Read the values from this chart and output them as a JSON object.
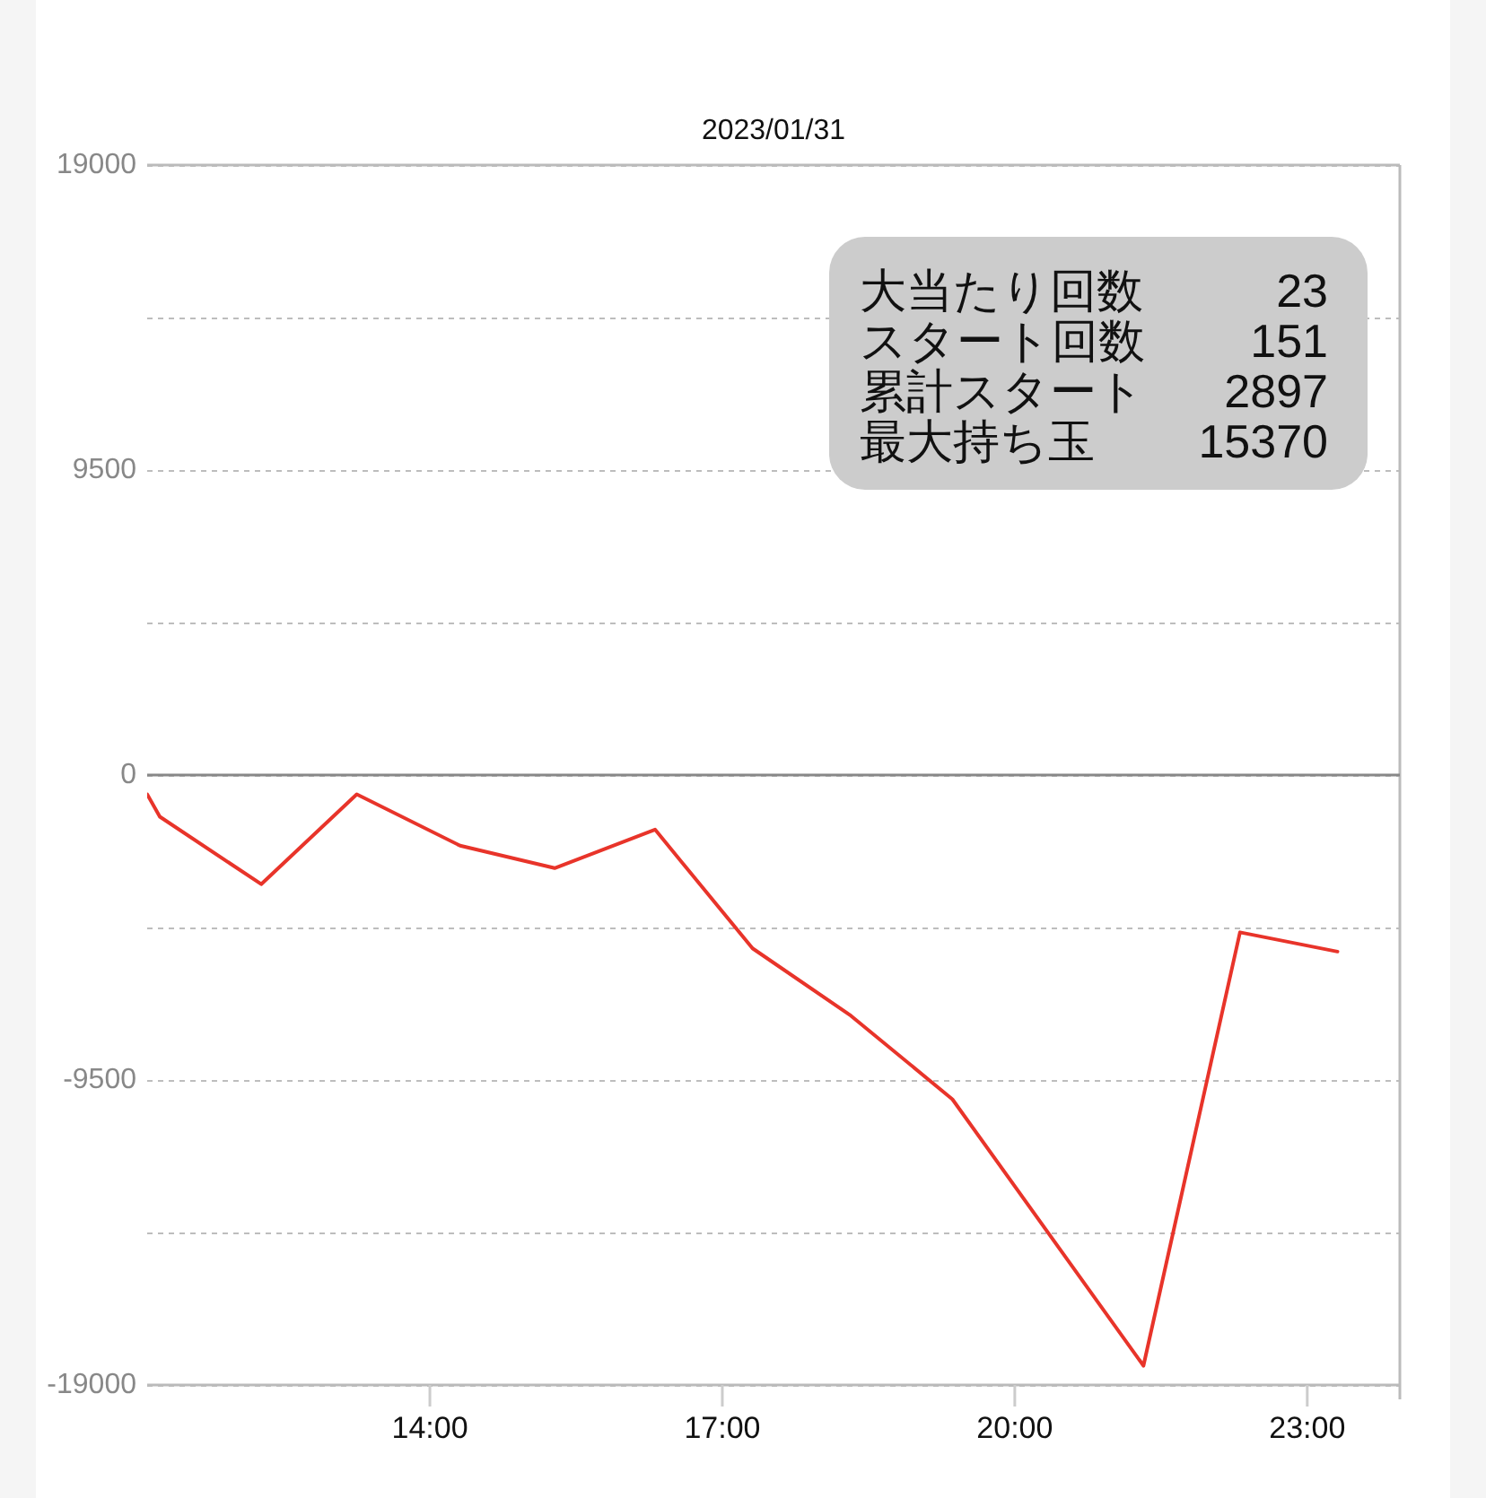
{
  "chart_data": {
    "type": "line",
    "title": "2023/01/31",
    "x": [
      11.1,
      11.23,
      12.27,
      13.25,
      14.31,
      15.28,
      16.31,
      17.31,
      18.32,
      19.36,
      21.32,
      22.31,
      23.31
    ],
    "values": [
      -600,
      -1300,
      -3400,
      -600,
      -2200,
      -2900,
      -1700,
      -5400,
      -7500,
      -10100,
      -18400,
      -4900,
      -5500
    ],
    "color": "#e8342a",
    "xlim": [
      11.1,
      23.95
    ],
    "xticks": [
      {
        "value": 14,
        "label": "14:00"
      },
      {
        "value": 17,
        "label": "17:00"
      },
      {
        "value": 20,
        "label": "20:00"
      },
      {
        "value": 23,
        "label": "23:00"
      }
    ],
    "ylim": [
      -19000,
      19000
    ],
    "yticks": [
      19000,
      {
        "value": 14250,
        "label": null
      },
      9500,
      {
        "value": 4750,
        "label": null
      },
      0,
      {
        "value": -4750,
        "label": null
      },
      -9500,
      {
        "value": -14250,
        "label": null
      },
      -19000
    ],
    "grid": "y",
    "ref_lines": [
      {
        "axis": "y",
        "value": 0,
        "color": "#888888"
      }
    ],
    "annotations": [
      "大当たり回数",
      "23",
      "スタート回数",
      "151",
      "累計スタート",
      "2897",
      "最大持ち玉",
      "15370"
    ]
  }
}
